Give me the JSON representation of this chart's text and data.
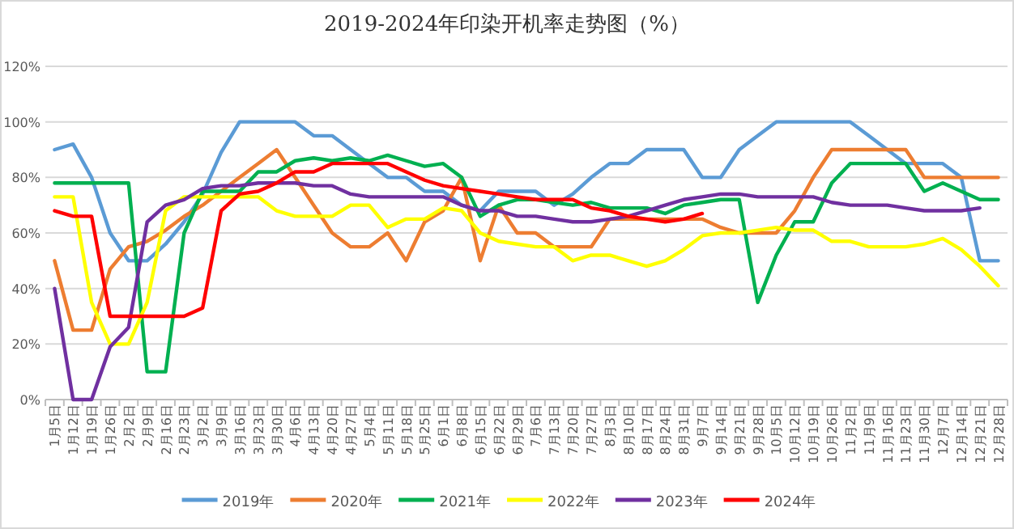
{
  "chart_data": {
    "type": "line",
    "title": "2019-2024年印染开机率走势图（%）",
    "categories": [
      "1月5日",
      "1月12日",
      "1月19日",
      "1月26日",
      "2月2日",
      "2月9日",
      "2月16日",
      "2月23日",
      "3月2日",
      "3月9日",
      "3月16日",
      "3月23日",
      "3月30日",
      "4月6日",
      "4月13日",
      "4月20日",
      "4月27日",
      "5月4日",
      "5月11日",
      "5月18日",
      "5月25日",
      "6月1日",
      "6月8日",
      "6月15日",
      "6月22日",
      "6月29日",
      "7月6日",
      "7月13日",
      "7月20日",
      "7月27日",
      "8月3日",
      "8月10日",
      "8月17日",
      "8月24日",
      "8月31日",
      "9月7日",
      "9月14日",
      "9月21日",
      "9月28日",
      "10月5日",
      "10月12日",
      "10月19日",
      "10月26日",
      "11月2日",
      "11月9日",
      "11月16日",
      "11月23日",
      "11月30日",
      "12月7日",
      "12月14日",
      "12月21日",
      "12月28日"
    ],
    "ylim": [
      0,
      120
    ],
    "yticks": [
      {
        "value": 0,
        "label": "0%"
      },
      {
        "value": 20,
        "label": "20%"
      },
      {
        "value": 40,
        "label": "40%"
      },
      {
        "value": 60,
        "label": "60%"
      },
      {
        "value": 80,
        "label": "80%"
      },
      {
        "value": 100,
        "label": "100%"
      },
      {
        "value": 120,
        "label": "120%"
      }
    ],
    "grid": "y",
    "legend": "bottom",
    "series": [
      {
        "name": "2019年",
        "color": "#5b9bd5",
        "values": [
          90,
          92,
          80,
          60,
          50,
          50,
          56,
          64,
          74,
          89,
          100,
          100,
          100,
          100,
          95,
          95,
          90,
          85,
          80,
          80,
          75,
          75,
          70,
          68,
          75,
          75,
          75,
          70,
          74,
          80,
          85,
          85,
          90,
          90,
          90,
          80,
          80,
          90,
          95,
          100,
          100,
          100,
          100,
          100,
          95,
          90,
          85,
          85,
          85,
          80,
          50,
          50
        ]
      },
      {
        "name": "2020年",
        "color": "#ed7d31",
        "values": [
          50,
          25,
          25,
          47,
          55,
          57,
          61,
          66,
          70,
          75,
          80,
          85,
          90,
          80,
          70,
          60,
          55,
          55,
          60,
          50,
          64,
          68,
          80,
          50,
          70,
          60,
          60,
          55,
          55,
          55,
          65,
          65,
          65,
          65,
          65,
          65,
          62,
          60,
          60,
          60,
          68,
          80,
          90,
          90,
          90,
          90,
          90,
          80,
          80,
          80,
          80,
          80
        ]
      },
      {
        "name": "2021年",
        "color": "#00b050",
        "values": [
          78,
          78,
          78,
          78,
          78,
          10,
          10,
          60,
          75,
          75,
          75,
          82,
          82,
          86,
          87,
          86,
          87,
          86,
          88,
          86,
          84,
          85,
          80,
          66,
          70,
          72,
          72,
          71,
          70,
          71,
          69,
          69,
          69,
          67,
          70,
          71,
          72,
          72,
          35,
          52,
          64,
          64,
          78,
          85,
          85,
          85,
          85,
          75,
          78,
          75,
          72,
          72
        ]
      },
      {
        "name": "2022年",
        "color": "#ffff00",
        "values": [
          73,
          73,
          35,
          20,
          20,
          35,
          68,
          73,
          73,
          73,
          73,
          73,
          68,
          66,
          66,
          66,
          70,
          70,
          62,
          65,
          65,
          69,
          68,
          60,
          57,
          56,
          55,
          55,
          50,
          52,
          52,
          50,
          48,
          50,
          54,
          59,
          60,
          60,
          61,
          62,
          61,
          61,
          57,
          57,
          55,
          55,
          55,
          56,
          58,
          54,
          48,
          41
        ]
      },
      {
        "name": "2023年",
        "color": "#7030a0",
        "values": [
          40,
          0,
          0,
          19,
          26,
          64,
          70,
          72,
          76,
          77,
          77,
          78,
          78,
          78,
          77,
          77,
          74,
          73,
          73,
          73,
          73,
          73,
          70,
          68,
          68,
          66,
          66,
          65,
          64,
          64,
          65,
          66,
          68,
          70,
          72,
          73,
          74,
          74,
          73,
          73,
          73,
          73,
          71,
          70,
          70,
          70,
          69,
          68,
          68,
          68,
          69,
          null
        ]
      },
      {
        "name": "2024年",
        "color": "#ff0000",
        "values": [
          68,
          66,
          66,
          30,
          30,
          30,
          30,
          30,
          33,
          68,
          74,
          75,
          78,
          82,
          82,
          85,
          85,
          85,
          85,
          82,
          79,
          77,
          76,
          75,
          74,
          73,
          72,
          72,
          72,
          69,
          68,
          66,
          65,
          64,
          65,
          67,
          null,
          null,
          null,
          null,
          null,
          null,
          null,
          null,
          null,
          null,
          null,
          null,
          null,
          null,
          null,
          null
        ]
      }
    ]
  }
}
